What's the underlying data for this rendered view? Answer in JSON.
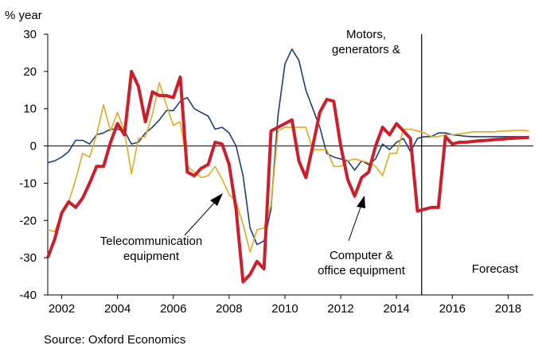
{
  "chart_data": {
    "type": "line",
    "y_label": "% year",
    "source": "Source: Oxford Economics",
    "annotations": [
      {
        "lines": [
          "Motors,",
          "generators &"
        ]
      },
      {
        "lines": [
          "Telecommunication",
          "equipment"
        ]
      },
      {
        "lines": [
          "Computer &",
          "office equipment"
        ]
      },
      {
        "lines": [
          "Forecast"
        ]
      }
    ],
    "forecast_start": 2014.9,
    "xlim": [
      2001.5,
      2018.9
    ],
    "xticks": [
      2002,
      2004,
      2006,
      2008,
      2010,
      2012,
      2014,
      2016,
      2018
    ],
    "ylim": [
      -40,
      30
    ],
    "yticks": [
      -40,
      -30,
      -20,
      -10,
      0,
      10,
      20,
      30
    ],
    "x": [
      2001.5,
      2001.75,
      2002,
      2002.25,
      2002.5,
      2002.75,
      2003,
      2003.25,
      2003.5,
      2003.75,
      2004,
      2004.25,
      2004.5,
      2004.75,
      2005,
      2005.25,
      2005.5,
      2005.75,
      2006,
      2006.25,
      2006.5,
      2006.75,
      2007,
      2007.25,
      2007.5,
      2007.75,
      2008,
      2008.25,
      2008.5,
      2008.75,
      2009,
      2009.25,
      2009.5,
      2009.75,
      2010,
      2010.25,
      2010.5,
      2010.75,
      2011,
      2011.25,
      2011.5,
      2011.75,
      2012,
      2012.25,
      2012.5,
      2012.75,
      2013,
      2013.25,
      2013.5,
      2013.75,
      2014,
      2014.25,
      2014.5,
      2014.75,
      2015,
      2015.25,
      2015.5,
      2015.75,
      2016,
      2016.25,
      2016.5,
      2016.75,
      2017,
      2017.25,
      2017.5,
      2017.75,
      2018,
      2018.25,
      2018.5,
      2018.75
    ],
    "series": [
      {
        "name": "Motors, generators &",
        "color": "#1b3f7a",
        "width": 1.6,
        "values": [
          -4.5,
          -4,
          -3,
          -1.5,
          1.5,
          1.5,
          0.5,
          3,
          3.5,
          4.5,
          4.5,
          4,
          0.5,
          1,
          3.5,
          5,
          7,
          9.5,
          9.5,
          12,
          13,
          10,
          9,
          8,
          4.5,
          5,
          3.5,
          0,
          -8,
          -22,
          -26.5,
          -25.5,
          -17,
          8,
          22,
          26,
          23,
          15,
          10,
          5,
          -2,
          -3,
          -3.5,
          -4,
          -6.5,
          -4,
          -5,
          -3.5,
          0.5,
          -1,
          1,
          2,
          -1.5,
          2,
          2.5,
          2.5,
          3.5,
          3.5,
          3,
          2.8,
          2.6,
          2.5,
          2.5,
          2.5,
          2.5,
          2.5,
          2.5,
          2.5,
          2.5,
          2.5
        ]
      },
      {
        "name": "Telecommunication equipment",
        "color": "#e2aa22",
        "width": 1.6,
        "values": [
          -22.5,
          -23,
          -18,
          -15,
          -9,
          -2,
          -3,
          3,
          11,
          4,
          9,
          4,
          -7.5,
          2,
          2.5,
          8.5,
          17,
          11,
          5.5,
          6.5,
          -5.5,
          -7,
          -8.5,
          -8,
          -5.5,
          -9,
          -13,
          -15,
          -21,
          -28.5,
          -22.5,
          -22,
          -16,
          4,
          5,
          5,
          5,
          5,
          -1,
          -1,
          -1,
          -5.5,
          -5.5,
          -4,
          -3.5,
          -4,
          -4.5,
          -5.5,
          -8,
          -2,
          -2,
          4.5,
          4.5,
          4,
          3.5,
          2.5,
          2.5,
          3,
          3,
          3.2,
          3.5,
          3.8,
          3.8,
          3.8,
          3.8,
          4,
          4,
          4.2,
          4.2,
          4
        ]
      },
      {
        "name": "Computer & office equipment",
        "color": "#cc1f2c",
        "width": 4,
        "values": [
          -30,
          -25,
          -18,
          -15,
          -16.5,
          -14,
          -10,
          -5.5,
          -5.5,
          1,
          6,
          3,
          20,
          16,
          6.5,
          14.5,
          13.5,
          13.5,
          13,
          18.5,
          -7,
          -8,
          -6,
          -5,
          1,
          0.5,
          -5,
          -17,
          -36.5,
          -34.5,
          -31,
          -33,
          4,
          5,
          6,
          7,
          -4,
          -8.5,
          0,
          9,
          12.5,
          12,
          0,
          -9,
          -13.5,
          -8.5,
          -7,
          0,
          5,
          3,
          6,
          4,
          2,
          -17.5,
          -17,
          -16.5,
          -16.5,
          2.5,
          0.5,
          1,
          1,
          1.2,
          1.4,
          1.5,
          1.7,
          1.8,
          2,
          2.1,
          2.2,
          2.3
        ]
      }
    ]
  }
}
